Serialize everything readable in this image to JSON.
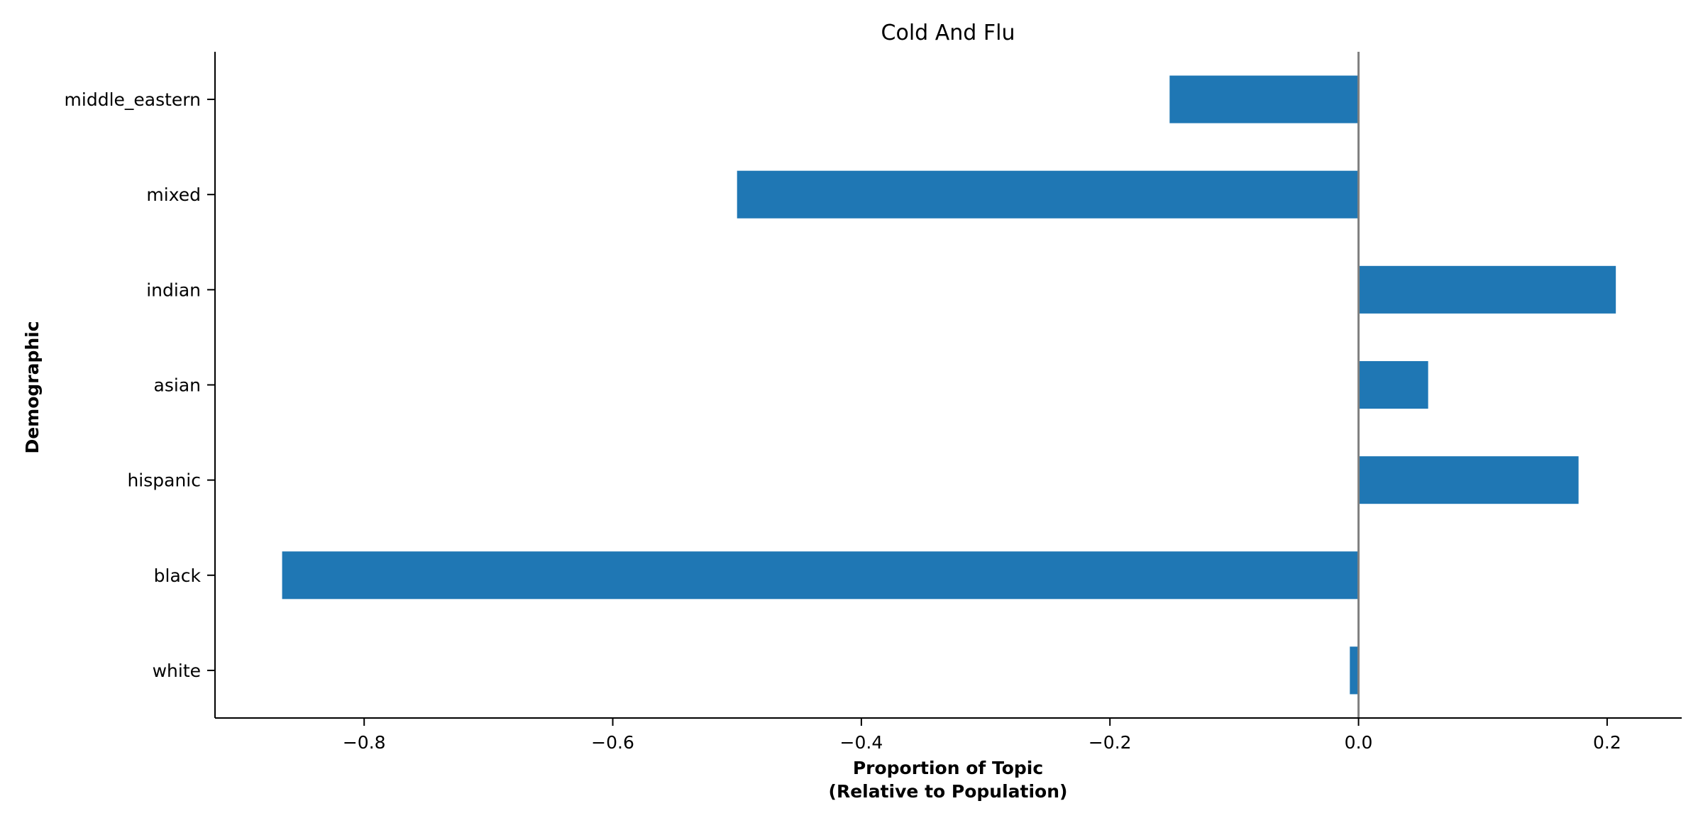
{
  "chart_data": {
    "type": "bar",
    "orientation": "horizontal",
    "title": "Cold And Flu",
    "xlabel": [
      "Proportion of Topic",
      "(Relative to Population)"
    ],
    "ylabel": "Demographic",
    "categories": [
      "white",
      "black",
      "hispanic",
      "asian",
      "indian",
      "mixed",
      "middle_eastern"
    ],
    "values": [
      -0.007,
      -0.866,
      0.177,
      0.056,
      0.207,
      -0.5,
      -0.152
    ],
    "xlim": [
      -0.92,
      0.26
    ],
    "xticks": [
      -0.8,
      -0.6,
      -0.4,
      -0.2,
      0.0,
      0.2
    ],
    "xtick_labels": [
      "−0.8",
      "−0.6",
      "−0.4",
      "−0.2",
      "0.0",
      "0.2"
    ],
    "reference_line": 0,
    "grid": false,
    "colors": {
      "bar": "#1f77b4",
      "reference_line": "#808080",
      "axis": "#000000"
    }
  }
}
